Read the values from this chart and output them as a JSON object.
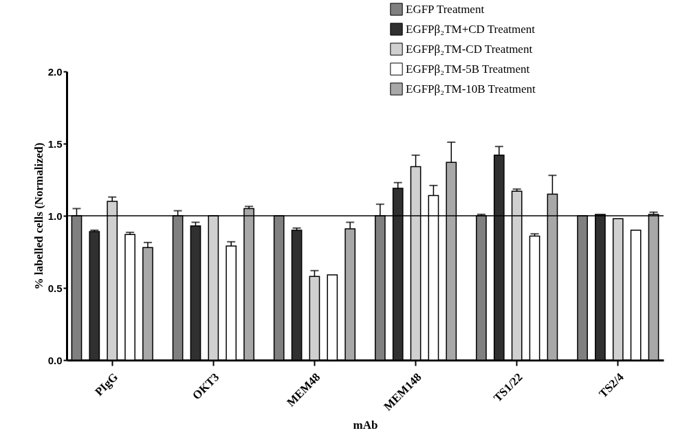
{
  "chart_data": {
    "type": "bar",
    "xlabel": "mAb",
    "ylabel": "% labelled cells (Normalized)",
    "categories": [
      "PIgG",
      "OKT3",
      "MEM48",
      "MEM148",
      "TS1/22",
      "TS2/4"
    ],
    "series": [
      {
        "name": "EGFP Treatment",
        "color": "#808080",
        "values": [
          1.0,
          1.0,
          1.0,
          1.0,
          1.0,
          1.0
        ],
        "errors": [
          0.05,
          0.035,
          null,
          0.08,
          0.01,
          null
        ]
      },
      {
        "name": "EGFPβ₂TM+CD Treatment",
        "color": "#303030",
        "values": [
          0.89,
          0.93,
          0.9,
          1.19,
          1.42,
          1.01
        ],
        "errors": [
          0.01,
          0.025,
          0.015,
          0.04,
          0.06,
          null
        ]
      },
      {
        "name": "EGFPβ₂TM-CD Treatment",
        "color": "#d0d0d0",
        "values": [
          1.1,
          1.0,
          0.58,
          1.34,
          1.17,
          0.98
        ],
        "errors": [
          0.03,
          null,
          0.04,
          0.08,
          0.015,
          null
        ]
      },
      {
        "name": "EGFPβ₂TM-5B Treatment",
        "color": "#ffffff",
        "values": [
          0.87,
          0.79,
          0.59,
          1.14,
          0.86,
          0.9
        ],
        "errors": [
          0.015,
          0.03,
          null,
          0.07,
          0.015,
          null
        ]
      },
      {
        "name": "EGFPβ₂TM-10B Treatment",
        "color": "#a8a8a8",
        "values": [
          0.78,
          1.05,
          0.91,
          1.37,
          1.15,
          1.01
        ],
        "errors": [
          0.035,
          0.015,
          0.045,
          0.14,
          0.13,
          0.015
        ]
      }
    ],
    "ylim": [
      0,
      2
    ],
    "yticks": [
      {
        "value": 0,
        "label": "0.0"
      },
      {
        "value": 0.5,
        "label": "0.5"
      },
      {
        "value": 1,
        "label": "1.0"
      },
      {
        "value": 1.5,
        "label": "1.5"
      },
      {
        "value": 2,
        "label": "2.0"
      }
    ],
    "ref_lines": [
      {
        "axis": "y",
        "value": 1,
        "label": null,
        "color": "#000000"
      }
    ],
    "grid": false,
    "legend": "top right"
  }
}
